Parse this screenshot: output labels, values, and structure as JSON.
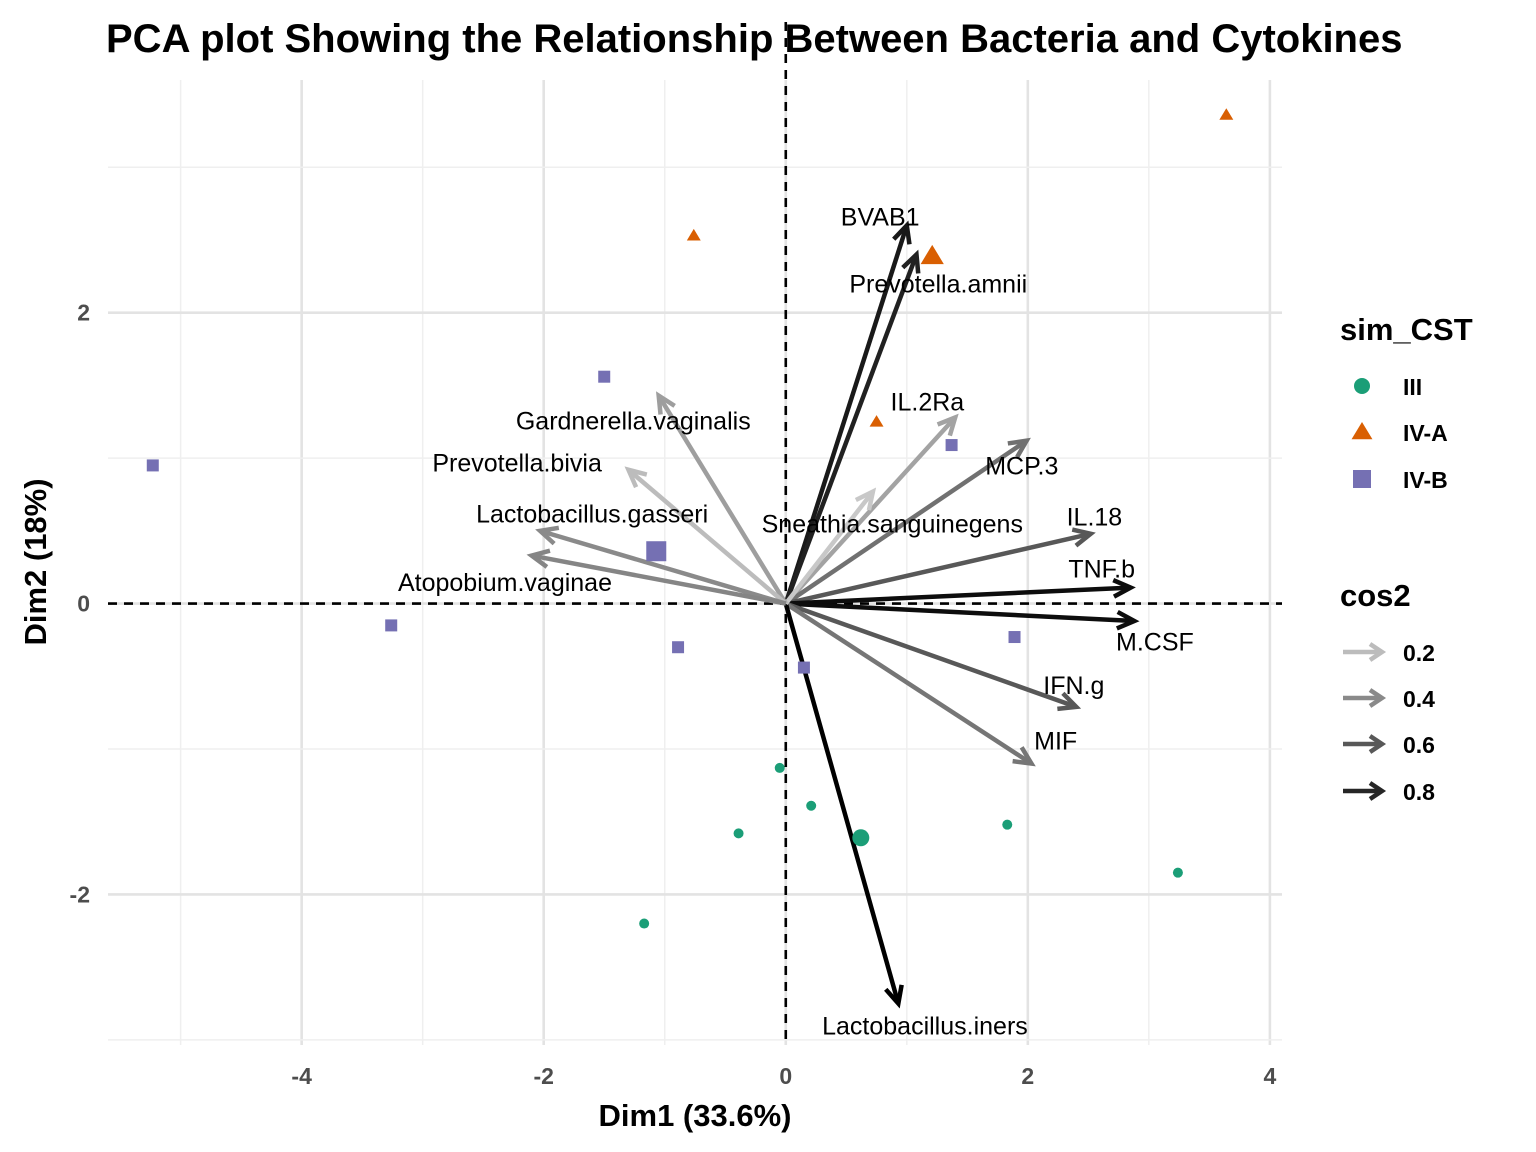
{
  "chart_data": {
    "type": "scatter",
    "title": "PCA plot Showing the Relationship Between Bacteria and Cytokines",
    "xlabel": "Dim1 (33.6%)",
    "ylabel": "Dim2 (18%)",
    "xlim": [
      -5.6,
      4.1
    ],
    "ylim": [
      -3.035,
      3.6
    ],
    "x_ticks": [
      -4,
      -2,
      0,
      2,
      4
    ],
    "x_tick_labels": [
      "-4",
      "-2",
      "0",
      "2",
      "4"
    ],
    "y_ticks": [
      -2,
      0,
      2
    ],
    "y_tick_labels": [
      "-2",
      "0",
      "2"
    ],
    "grid": true,
    "reference_lines": {
      "x": 0,
      "y": 0,
      "style": "dashed"
    },
    "groups": [
      {
        "name": "III",
        "shape": "circle",
        "color": "#1b9e77",
        "points": [
          [
            -0.05,
            -1.13
          ],
          [
            0.21,
            -1.39
          ],
          [
            -0.39,
            -1.58
          ],
          [
            1.83,
            -1.52
          ],
          [
            3.24,
            -1.85
          ],
          [
            -1.17,
            -2.2
          ]
        ],
        "centroid": [
          0.62,
          -1.61
        ]
      },
      {
        "name": "IV-A",
        "shape": "triangle",
        "color": "#d95f02",
        "points": [
          [
            3.64,
            3.36
          ],
          [
            -0.76,
            2.53
          ],
          [
            0.75,
            1.25
          ]
        ],
        "centroid": [
          1.21,
          2.39
        ]
      },
      {
        "name": "IV-B",
        "shape": "square",
        "color": "#7570b3",
        "points": [
          [
            -5.23,
            0.95
          ],
          [
            -1.5,
            1.56
          ],
          [
            1.37,
            1.09
          ],
          [
            -3.26,
            -0.15
          ],
          [
            -0.89,
            -0.3
          ],
          [
            0.15,
            -0.44
          ],
          [
            1.89,
            -0.23
          ]
        ],
        "centroid": [
          -1.07,
          0.36
        ]
      }
    ],
    "variables": [
      {
        "name": "BVAB1",
        "x": 1.0,
        "y": 2.6,
        "cos2": 0.85,
        "label_x": 0.78,
        "label_y": 2.66
      },
      {
        "name": "Prevotella.amnii",
        "x": 1.08,
        "y": 2.4,
        "cos2": 0.82,
        "label_x": 1.26,
        "label_y": 2.2
      },
      {
        "name": "IL.2Ra",
        "x": 1.4,
        "y": 1.28,
        "cos2": 0.3,
        "label_x": 1.17,
        "label_y": 1.39
      },
      {
        "name": "MCP.3",
        "x": 1.99,
        "y": 1.12,
        "cos2": 0.5,
        "label_x": 1.95,
        "label_y": 0.95
      },
      {
        "name": "IL.18",
        "x": 2.52,
        "y": 0.48,
        "cos2": 0.6,
        "label_x": 2.55,
        "label_y": 0.6
      },
      {
        "name": "TNF.b",
        "x": 2.85,
        "y": 0.11,
        "cos2": 0.9,
        "label_x": 2.61,
        "label_y": 0.24
      },
      {
        "name": "M.CSF",
        "x": 2.88,
        "y": -0.12,
        "cos2": 0.9,
        "label_x": 3.05,
        "label_y": -0.26
      },
      {
        "name": "IFN.g",
        "x": 2.4,
        "y": -0.71,
        "cos2": 0.6,
        "label_x": 2.38,
        "label_y": -0.56
      },
      {
        "name": "MIF",
        "x": 2.03,
        "y": -1.1,
        "cos2": 0.48,
        "label_x": 2.23,
        "label_y": -0.94
      },
      {
        "name": "Lactobacillus.iners",
        "x": 0.93,
        "y": -2.75,
        "cos2": 0.95,
        "label_x": 1.15,
        "label_y": -2.9
      },
      {
        "name": "Sneathia.sanguinegens",
        "x": 0.72,
        "y": 0.77,
        "cos2": 0.12,
        "label_x": 0.88,
        "label_y": 0.55
      },
      {
        "name": "Gardnerella.vaginalis",
        "x": -1.05,
        "y": 1.43,
        "cos2": 0.32,
        "label_x": -1.26,
        "label_y": 1.26
      },
      {
        "name": "Prevotella.bivia",
        "x": -1.3,
        "y": 0.92,
        "cos2": 0.2,
        "label_x": -2.22,
        "label_y": 0.97
      },
      {
        "name": "Lactobacillus.gasseri",
        "x": -2.03,
        "y": 0.5,
        "cos2": 0.4,
        "label_x": -1.6,
        "label_y": 0.62
      },
      {
        "name": "Atopobium.vaginae",
        "x": -2.1,
        "y": 0.33,
        "cos2": 0.42,
        "label_x": -2.32,
        "label_y": 0.15
      }
    ],
    "legend": {
      "placement": "right",
      "group_legend": {
        "title": "sim_CST",
        "items": [
          "III",
          "IV-A",
          "IV-B"
        ]
      },
      "cos2_legend": {
        "title": "cos2",
        "values": [
          0.2,
          0.4,
          0.6,
          0.8
        ],
        "labels": [
          "0.2",
          "0.4",
          "0.6",
          "0.8"
        ]
      }
    }
  }
}
